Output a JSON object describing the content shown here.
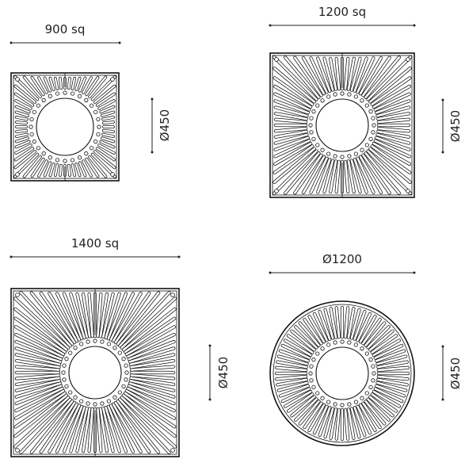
{
  "grates": [
    {
      "id": "g900",
      "shape": "square",
      "size_label": "900 sq",
      "bore_label": "Ø450"
    },
    {
      "id": "g1200",
      "shape": "square",
      "size_label": "1200 sq",
      "bore_label": "Ø450"
    },
    {
      "id": "g1400",
      "shape": "square",
      "size_label": "1400 sq",
      "bore_label": "Ø450"
    },
    {
      "id": "r1200",
      "shape": "circle",
      "size_label": "Ø1200",
      "bore_label": "Ø450"
    }
  ]
}
